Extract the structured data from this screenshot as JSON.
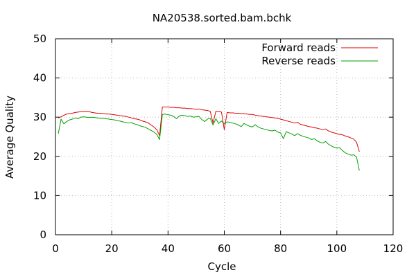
{
  "chart_data": {
    "type": "line",
    "title": "NA20538.sorted.bam.bchk",
    "xlabel": "Cycle",
    "ylabel": "Average Quality",
    "xlim": [
      0,
      120
    ],
    "ylim": [
      0,
      50
    ],
    "x_ticks": [
      "0",
      "20",
      "40",
      "60",
      "80",
      "100",
      "120"
    ],
    "y_ticks": [
      "0",
      "10",
      "20",
      "30",
      "40",
      "50"
    ],
    "grid": true,
    "legend_position": "top-right",
    "series": [
      {
        "name": "Forward reads",
        "color": "#e00000",
        "points": [
          [
            1,
            29.8
          ],
          [
            2,
            30.1
          ],
          [
            3,
            30.5
          ],
          [
            4,
            30.8
          ],
          [
            5,
            30.9
          ],
          [
            6,
            31.0
          ],
          [
            7,
            31.2
          ],
          [
            8,
            31.3
          ],
          [
            9,
            31.4
          ],
          [
            10,
            31.4
          ],
          [
            11,
            31.5
          ],
          [
            12,
            31.4
          ],
          [
            13,
            31.2
          ],
          [
            14,
            31.1
          ],
          [
            15,
            31.0
          ],
          [
            16,
            31.0
          ],
          [
            17,
            30.9
          ],
          [
            18,
            30.8
          ],
          [
            19,
            30.8
          ],
          [
            20,
            30.7
          ],
          [
            21,
            30.6
          ],
          [
            22,
            30.5
          ],
          [
            23,
            30.4
          ],
          [
            24,
            30.3
          ],
          [
            25,
            30.2
          ],
          [
            26,
            30.0
          ],
          [
            27,
            29.8
          ],
          [
            28,
            29.6
          ],
          [
            29,
            29.5
          ],
          [
            30,
            29.3
          ],
          [
            31,
            29.0
          ],
          [
            32,
            28.8
          ],
          [
            33,
            28.5
          ],
          [
            34,
            28.0
          ],
          [
            35,
            27.5
          ],
          [
            36,
            26.8
          ],
          [
            37,
            25.3
          ],
          [
            38,
            32.6
          ],
          [
            39,
            32.6
          ],
          [
            40,
            32.6
          ],
          [
            41,
            32.5
          ],
          [
            42,
            32.5
          ],
          [
            43,
            32.4
          ],
          [
            44,
            32.4
          ],
          [
            45,
            32.3
          ],
          [
            46,
            32.3
          ],
          [
            47,
            32.2
          ],
          [
            48,
            32.2
          ],
          [
            49,
            32.1
          ],
          [
            50,
            32.0
          ],
          [
            51,
            32.1
          ],
          [
            52,
            31.9
          ],
          [
            53,
            31.8
          ],
          [
            54,
            31.7
          ],
          [
            55,
            31.5
          ],
          [
            56,
            28.5
          ],
          [
            57,
            31.5
          ],
          [
            58,
            31.5
          ],
          [
            59,
            31.3
          ],
          [
            60,
            26.8
          ],
          [
            61,
            31.2
          ],
          [
            62,
            31.1
          ],
          [
            63,
            31.1
          ],
          [
            64,
            31.0
          ],
          [
            65,
            31.0
          ],
          [
            66,
            30.9
          ],
          [
            67,
            30.9
          ],
          [
            68,
            30.8
          ],
          [
            69,
            30.7
          ],
          [
            70,
            30.7
          ],
          [
            71,
            30.5
          ],
          [
            72,
            30.4
          ],
          [
            73,
            30.3
          ],
          [
            74,
            30.2
          ],
          [
            75,
            30.1
          ],
          [
            76,
            30.0
          ],
          [
            77,
            29.9
          ],
          [
            78,
            29.8
          ],
          [
            79,
            29.7
          ],
          [
            80,
            29.5
          ],
          [
            81,
            29.3
          ],
          [
            82,
            29.1
          ],
          [
            83,
            28.9
          ],
          [
            84,
            28.7
          ],
          [
            85,
            28.5
          ],
          [
            86,
            28.7
          ],
          [
            87,
            28.2
          ],
          [
            88,
            28.0
          ],
          [
            89,
            27.8
          ],
          [
            90,
            27.6
          ],
          [
            91,
            27.5
          ],
          [
            92,
            27.3
          ],
          [
            93,
            27.2
          ],
          [
            94,
            27.0
          ],
          [
            95,
            26.8
          ],
          [
            96,
            27.0
          ],
          [
            97,
            26.5
          ],
          [
            98,
            26.2
          ],
          [
            99,
            26.0
          ],
          [
            100,
            25.8
          ],
          [
            101,
            25.6
          ],
          [
            102,
            25.5
          ],
          [
            103,
            25.2
          ],
          [
            104,
            25.0
          ],
          [
            105,
            24.7
          ],
          [
            106,
            24.4
          ],
          [
            107,
            23.6
          ],
          [
            108,
            21.2
          ]
        ]
      },
      {
        "name": "Reverse reads",
        "color": "#00a000",
        "points": [
          [
            1,
            25.8
          ],
          [
            2,
            29.5
          ],
          [
            3,
            28.3
          ],
          [
            4,
            28.9
          ],
          [
            5,
            29.3
          ],
          [
            6,
            29.5
          ],
          [
            7,
            29.8
          ],
          [
            8,
            29.6
          ],
          [
            9,
            30.0
          ],
          [
            10,
            30.1
          ],
          [
            11,
            30.0
          ],
          [
            12,
            29.9
          ],
          [
            13,
            30.0
          ],
          [
            14,
            29.9
          ],
          [
            15,
            29.8
          ],
          [
            16,
            29.7
          ],
          [
            17,
            29.7
          ],
          [
            18,
            29.6
          ],
          [
            19,
            29.5
          ],
          [
            20,
            29.4
          ],
          [
            21,
            29.3
          ],
          [
            22,
            29.1
          ],
          [
            23,
            29.0
          ],
          [
            24,
            28.8
          ],
          [
            25,
            28.7
          ],
          [
            26,
            28.5
          ],
          [
            27,
            28.6
          ],
          [
            28,
            28.3
          ],
          [
            29,
            28.1
          ],
          [
            30,
            27.8
          ],
          [
            31,
            27.6
          ],
          [
            32,
            27.4
          ],
          [
            33,
            27.0
          ],
          [
            34,
            26.6
          ],
          [
            35,
            26.2
          ],
          [
            36,
            25.6
          ],
          [
            37,
            24.3
          ],
          [
            38,
            30.7
          ],
          [
            39,
            30.8
          ],
          [
            40,
            30.6
          ],
          [
            41,
            30.5
          ],
          [
            42,
            30.2
          ],
          [
            43,
            29.6
          ],
          [
            44,
            30.3
          ],
          [
            45,
            30.5
          ],
          [
            46,
            30.4
          ],
          [
            47,
            30.2
          ],
          [
            48,
            30.3
          ],
          [
            49,
            30.0
          ],
          [
            50,
            30.1
          ],
          [
            51,
            30.2
          ],
          [
            52,
            29.4
          ],
          [
            53,
            28.9
          ],
          [
            54,
            29.5
          ],
          [
            55,
            29.7
          ],
          [
            56,
            28.0
          ],
          [
            57,
            29.6
          ],
          [
            58,
            28.4
          ],
          [
            59,
            29.0
          ],
          [
            60,
            28.3
          ],
          [
            61,
            28.8
          ],
          [
            62,
            28.7
          ],
          [
            63,
            28.5
          ],
          [
            64,
            28.3
          ],
          [
            65,
            28.0
          ],
          [
            66,
            27.6
          ],
          [
            67,
            28.4
          ],
          [
            68,
            28.0
          ],
          [
            69,
            27.7
          ],
          [
            70,
            27.5
          ],
          [
            71,
            28.1
          ],
          [
            72,
            27.5
          ],
          [
            73,
            27.2
          ],
          [
            74,
            27.0
          ],
          [
            75,
            26.8
          ],
          [
            76,
            26.6
          ],
          [
            77,
            26.5
          ],
          [
            78,
            26.7
          ],
          [
            79,
            26.2
          ],
          [
            80,
            26.0
          ],
          [
            81,
            24.5
          ],
          [
            82,
            26.3
          ],
          [
            83,
            26.0
          ],
          [
            84,
            25.7
          ],
          [
            85,
            25.3
          ],
          [
            86,
            25.8
          ],
          [
            87,
            25.4
          ],
          [
            88,
            25.1
          ],
          [
            89,
            24.9
          ],
          [
            90,
            24.7
          ],
          [
            91,
            24.3
          ],
          [
            92,
            24.5
          ],
          [
            93,
            24.0
          ],
          [
            94,
            23.6
          ],
          [
            95,
            23.4
          ],
          [
            96,
            23.8
          ],
          [
            97,
            23.1
          ],
          [
            98,
            22.7
          ],
          [
            99,
            22.3
          ],
          [
            100,
            22.1
          ],
          [
            101,
            22.2
          ],
          [
            102,
            21.5
          ],
          [
            103,
            20.9
          ],
          [
            104,
            20.6
          ],
          [
            105,
            20.3
          ],
          [
            106,
            20.4
          ],
          [
            107,
            19.8
          ],
          [
            108,
            16.4
          ]
        ]
      }
    ]
  }
}
